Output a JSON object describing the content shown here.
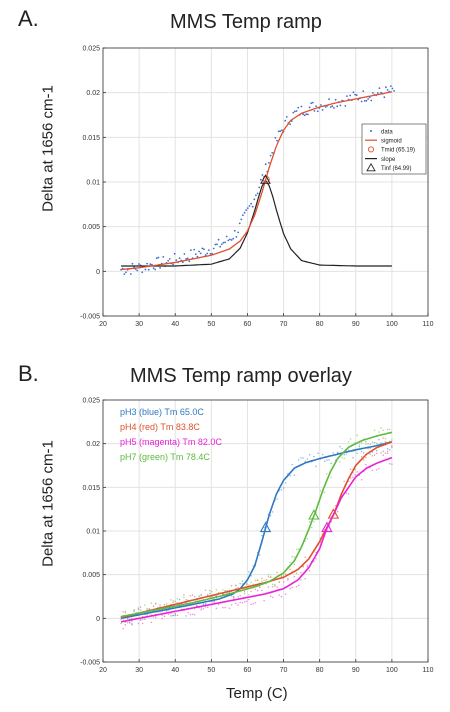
{
  "panel_a": {
    "label": "A."
  },
  "panel_b": {
    "label": "B."
  },
  "chart_data": [
    {
      "type": "line",
      "title": "MMS Temp ramp",
      "xlabel": "",
      "ylabel": "Delta at 1656 cm-1",
      "xlim": [
        20,
        110
      ],
      "ylim": [
        -0.005,
        0.025
      ],
      "xticks": [
        "20",
        "30",
        "40",
        "50",
        "60",
        "70",
        "80",
        "90",
        "100",
        "110"
      ],
      "yticks": [
        "-0.005",
        "0",
        "0.005",
        "0.01",
        "0.015",
        "0.02",
        "0.025"
      ],
      "grid": true,
      "legend_position": "right",
      "legend": [
        "data",
        "sigmoid",
        "Tmid (65.19)",
        "slope",
        "Tinf (64.99)"
      ],
      "series": [
        {
          "name": "data",
          "kind": "scatter",
          "color": "#3b6fd0",
          "x": [
            25,
            28,
            31,
            34,
            37,
            40,
            43,
            46,
            49,
            52,
            55,
            57,
            59,
            61,
            63,
            65,
            67,
            69,
            71,
            73,
            75,
            78,
            81,
            84,
            87,
            90,
            93,
            96,
            99,
            101
          ],
          "y": [
            0.0002,
            0.0003,
            0.0005,
            0.0008,
            0.001,
            0.0013,
            0.0016,
            0.002,
            0.0024,
            0.0029,
            0.0036,
            0.0044,
            0.0058,
            0.0075,
            0.0093,
            0.0113,
            0.0135,
            0.0155,
            0.0168,
            0.0176,
            0.018,
            0.0184,
            0.0187,
            0.019,
            0.0192,
            0.0195,
            0.0197,
            0.0199,
            0.0201,
            0.0203
          ]
        },
        {
          "name": "sigmoid",
          "kind": "line",
          "color": "#e0502e",
          "x": [
            25,
            30,
            35,
            40,
            45,
            50,
            55,
            58,
            60,
            62,
            64,
            66,
            68,
            70,
            72,
            75,
            80,
            85,
            90,
            95,
            100
          ],
          "y": [
            0.0002,
            0.0004,
            0.0007,
            0.001,
            0.0014,
            0.0018,
            0.0025,
            0.0034,
            0.0045,
            0.0063,
            0.0088,
            0.0116,
            0.014,
            0.0158,
            0.0169,
            0.0177,
            0.0184,
            0.0189,
            0.0193,
            0.0197,
            0.0201
          ]
        },
        {
          "name": "slope",
          "kind": "line",
          "color": "#222222",
          "x": [
            25,
            40,
            50,
            55,
            58,
            60,
            62,
            63,
            64,
            65,
            66,
            67,
            68,
            70,
            72,
            75,
            80,
            90,
            100
          ],
          "y": [
            0.0006,
            0.0006,
            0.0008,
            0.0014,
            0.0026,
            0.0043,
            0.0068,
            0.0082,
            0.0095,
            0.0102,
            0.0096,
            0.0084,
            0.0069,
            0.0042,
            0.0025,
            0.0012,
            0.0007,
            0.0006,
            0.0006
          ]
        },
        {
          "name": "Tmid (65.19)",
          "kind": "marker",
          "marker": "circle",
          "color": "#e0502e",
          "x": [
            65.19
          ],
          "y": [
            0.0103
          ]
        },
        {
          "name": "Tinf (64.99)",
          "kind": "marker",
          "marker": "triangle",
          "color": "#222222",
          "x": [
            64.99
          ],
          "y": [
            0.0102
          ]
        }
      ]
    },
    {
      "type": "line",
      "title": "MMS Temp ramp overlay",
      "xlabel": "Temp (C)",
      "ylabel": "Delta at 1656 cm-1",
      "xlim": [
        20,
        110
      ],
      "ylim": [
        -0.005,
        0.025
      ],
      "xticks": [
        "20",
        "30",
        "40",
        "50",
        "60",
        "70",
        "80",
        "90",
        "100",
        "110"
      ],
      "yticks": [
        "-0.005",
        "0",
        "0.005",
        "0.01",
        "0.015",
        "0.02",
        "0.025"
      ],
      "grid": true,
      "legend_position": "top-left",
      "legend": [
        "pH3 (blue) Tm 65.0C",
        "pH4  (red) Tm 83.8C",
        "pH5 (magenta) Tm 82.0C",
        "pH7 (green) Tm 78.4C"
      ],
      "series": [
        {
          "name": "pH3 (blue) Tm 65.0C",
          "color": "#2f78c4",
          "tm": 65.0,
          "x": [
            25,
            35,
            45,
            52,
            56,
            58,
            60,
            62,
            64,
            66,
            68,
            70,
            73,
            76,
            80,
            85,
            90,
            95,
            100
          ],
          "y": [
            0.0,
            0.0008,
            0.0016,
            0.0022,
            0.0028,
            0.0034,
            0.0044,
            0.006,
            0.0088,
            0.0118,
            0.0142,
            0.0158,
            0.0172,
            0.0178,
            0.0183,
            0.0188,
            0.0193,
            0.0197,
            0.0202
          ]
        },
        {
          "name": "pH4  (red) Tm 83.8C",
          "color": "#e0502e",
          "tm": 83.8,
          "x": [
            25,
            35,
            45,
            55,
            65,
            70,
            74,
            77,
            80,
            82,
            84,
            86,
            88,
            90,
            93,
            96,
            100
          ],
          "y": [
            0.0001,
            0.0011,
            0.0021,
            0.0031,
            0.0041,
            0.0047,
            0.0056,
            0.0068,
            0.0088,
            0.0104,
            0.012,
            0.0142,
            0.016,
            0.0175,
            0.0188,
            0.0196,
            0.0202
          ]
        },
        {
          "name": "pH5 (magenta) Tm 82.0C",
          "color": "#e822d8",
          "tm": 82.0,
          "x": [
            25,
            35,
            45,
            55,
            65,
            70,
            74,
            77,
            80,
            82,
            84,
            86,
            88,
            90,
            93,
            96,
            100
          ],
          "y": [
            -0.0004,
            0.0004,
            0.0012,
            0.002,
            0.0028,
            0.0034,
            0.0044,
            0.0058,
            0.008,
            0.0103,
            0.012,
            0.0138,
            0.015,
            0.0162,
            0.0172,
            0.0178,
            0.0184
          ]
        },
        {
          "name": "pH7 (green) Tm 78.4C",
          "color": "#5cba3c",
          "tm": 78.4,
          "x": [
            25,
            35,
            45,
            55,
            62,
            66,
            70,
            73,
            75,
            77,
            79,
            81,
            83,
            85,
            88,
            92,
            96,
            100
          ],
          "y": [
            0.0002,
            0.001,
            0.0018,
            0.0028,
            0.0036,
            0.0042,
            0.0052,
            0.0066,
            0.0082,
            0.0102,
            0.0124,
            0.0148,
            0.0168,
            0.0183,
            0.0196,
            0.0204,
            0.0209,
            0.0213
          ]
        }
      ]
    }
  ]
}
